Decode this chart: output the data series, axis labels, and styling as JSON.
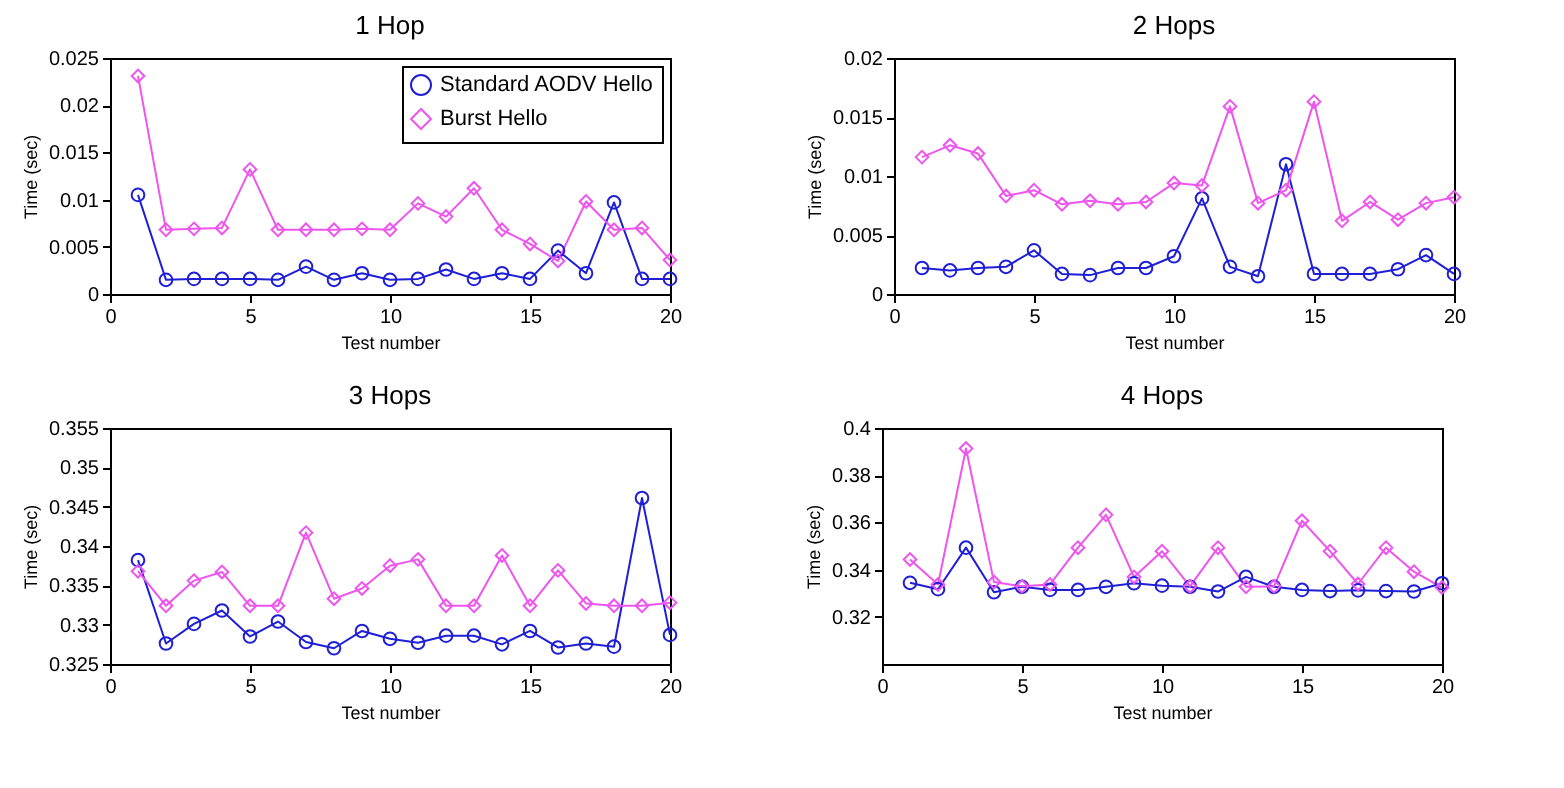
{
  "chart_data": [
    {
      "type": "line",
      "title": "1 Hop",
      "xlabel": "Test number",
      "ylabel": "Time (sec)",
      "x": [
        1,
        2,
        3,
        4,
        5,
        6,
        7,
        8,
        9,
        10,
        11,
        12,
        13,
        14,
        15,
        16,
        17,
        18,
        19,
        20
      ],
      "xlim": [
        0,
        20
      ],
      "xticks": [
        0,
        5,
        10,
        15,
        20
      ],
      "ylim": [
        0,
        0.025
      ],
      "yticks": [
        0,
        0.005,
        0.01,
        0.015,
        0.02,
        0.025
      ],
      "grid": false,
      "legend": "top right",
      "series": [
        {
          "name": "Standard AODV Hello",
          "color": "#1f1fd6",
          "marker": "circle",
          "values": [
            0.0105,
            0.0015,
            0.0016,
            0.0016,
            0.0016,
            0.0015,
            0.0029,
            0.0015,
            0.0022,
            0.0015,
            0.0016,
            0.0026,
            0.0016,
            0.0022,
            0.0016,
            0.0046,
            0.0022,
            0.0097,
            0.0016,
            0.0016
          ]
        },
        {
          "name": "Burst Hello",
          "color": "#ee55ee",
          "marker": "diamond",
          "values": [
            0.0231,
            0.0068,
            0.0069,
            0.007,
            0.0132,
            0.0068,
            0.0068,
            0.0068,
            0.0069,
            0.0068,
            0.0096,
            0.0082,
            0.0112,
            0.0068,
            0.0053,
            0.0035,
            0.0098,
            0.0068,
            0.007,
            0.0036
          ]
        }
      ]
    },
    {
      "type": "line",
      "title": "2 Hops",
      "xlabel": "Test number",
      "ylabel": "Time (sec)",
      "x": [
        1,
        2,
        3,
        4,
        5,
        6,
        7,
        8,
        9,
        10,
        11,
        12,
        13,
        14,
        15,
        16,
        17,
        18,
        19,
        20
      ],
      "xlim": [
        0,
        20
      ],
      "xticks": [
        0,
        5,
        10,
        15,
        20
      ],
      "ylim": [
        0,
        0.02
      ],
      "yticks": [
        0,
        0.005,
        0.01,
        0.015,
        0.02
      ],
      "grid": false,
      "series": [
        {
          "color": "#1f1fd6",
          "marker": "circle",
          "values": [
            0.0022,
            0.002,
            0.0022,
            0.0023,
            0.0037,
            0.0017,
            0.0016,
            0.0022,
            0.0022,
            0.0032,
            0.0081,
            0.0023,
            0.0015,
            0.011,
            0.0017,
            0.0017,
            0.0017,
            0.0021,
            0.0033,
            0.0017
          ]
        },
        {
          "color": "#ee55ee",
          "marker": "diamond",
          "values": [
            0.0116,
            0.0126,
            0.0119,
            0.0083,
            0.0088,
            0.0076,
            0.0079,
            0.0076,
            0.0078,
            0.0094,
            0.0092,
            0.0159,
            0.0077,
            0.0088,
            0.0163,
            0.0062,
            0.0078,
            0.0063,
            0.0077,
            0.0082
          ]
        }
      ]
    },
    {
      "type": "line",
      "title": "3 Hops",
      "xlabel": "Test number",
      "ylabel": "Time (sec)",
      "x": [
        1,
        2,
        3,
        4,
        5,
        6,
        7,
        8,
        9,
        10,
        11,
        12,
        13,
        14,
        15,
        16,
        17,
        18,
        19,
        20
      ],
      "xlim": [
        0,
        20
      ],
      "xticks": [
        0,
        5,
        10,
        15,
        20
      ],
      "ylim": [
        0.325,
        0.355
      ],
      "yticks": [
        0.325,
        0.33,
        0.335,
        0.34,
        0.345,
        0.35,
        0.355
      ],
      "grid": false,
      "series": [
        {
          "color": "#1f1fd6",
          "marker": "circle",
          "values": [
            0.3382,
            0.3276,
            0.3301,
            0.3318,
            0.3285,
            0.3304,
            0.3278,
            0.327,
            0.3292,
            0.3282,
            0.3277,
            0.3286,
            0.3286,
            0.3275,
            0.3292,
            0.3271,
            0.3276,
            0.3272,
            0.3461,
            0.3287
          ]
        },
        {
          "color": "#ee55ee",
          "marker": "diamond",
          "values": [
            0.3368,
            0.3324,
            0.3356,
            0.3367,
            0.3324,
            0.3324,
            0.3417,
            0.3333,
            0.3346,
            0.3375,
            0.3383,
            0.3324,
            0.3324,
            0.3388,
            0.3324,
            0.3369,
            0.3327,
            0.3324,
            0.3324,
            0.3328
          ]
        }
      ]
    },
    {
      "type": "line",
      "title": "4 Hops",
      "xlabel": "Test number",
      "ylabel": "Time (sec)",
      "x": [
        1,
        2,
        3,
        4,
        5,
        6,
        7,
        8,
        9,
        10,
        11,
        12,
        13,
        14,
        15,
        16,
        17,
        18,
        19,
        20
      ],
      "xlim": [
        0,
        20
      ],
      "xticks": [
        0,
        5,
        10,
        15,
        20
      ],
      "ylim": [
        0.3,
        0.4
      ],
      "yticks": [
        0.32,
        0.34,
        0.36,
        0.38,
        0.4
      ],
      "grid": false,
      "series": [
        {
          "color": "#1f1fd6",
          "marker": "circle",
          "values": [
            0.3344,
            0.3317,
            0.3493,
            0.3304,
            0.3327,
            0.3314,
            0.3314,
            0.3327,
            0.3342,
            0.3332,
            0.3327,
            0.3307,
            0.3369,
            0.3327,
            0.3314,
            0.3309,
            0.3312,
            0.3309,
            0.3307,
            0.3342
          ]
        },
        {
          "color": "#ee55ee",
          "marker": "diamond",
          "values": [
            0.3443,
            0.3337,
            0.3913,
            0.3347,
            0.3329,
            0.3337,
            0.3493,
            0.3632,
            0.3369,
            0.3478,
            0.3329,
            0.3493,
            0.3327,
            0.3329,
            0.3607,
            0.3478,
            0.3339,
            0.3493,
            0.3391,
            0.3324
          ]
        }
      ]
    }
  ]
}
